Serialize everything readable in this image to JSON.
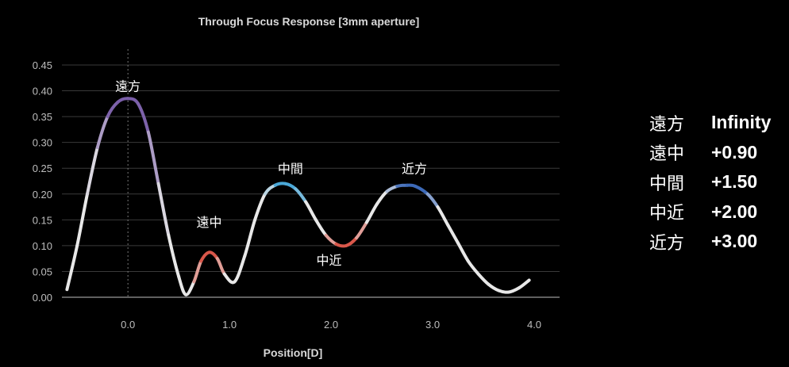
{
  "chart_data": {
    "type": "line",
    "title": "Through Focus Response [3mm aperture]",
    "xlabel": "Position[D]",
    "ylabel": "",
    "xlim": [
      -0.65,
      4.25
    ],
    "ylim": [
      0,
      0.45
    ],
    "x_ticks": [
      "0.0",
      "1.0",
      "2.0",
      "3.0",
      "4.0"
    ],
    "y_ticks": [
      "0.00",
      "0.05",
      "0.10",
      "0.15",
      "0.20",
      "0.25",
      "0.30",
      "0.35",
      "0.40",
      "0.45"
    ],
    "grid": "horizontal",
    "reference_line_x": 0.0,
    "series": [
      {
        "x": [
          -0.6,
          -0.5,
          -0.4,
          -0.3,
          -0.2,
          -0.1,
          0.0,
          0.1,
          0.2,
          0.3,
          0.4,
          0.5,
          0.57,
          0.65,
          0.72,
          0.8,
          0.88,
          0.95,
          1.05,
          1.15,
          1.25,
          1.35,
          1.45,
          1.55,
          1.65,
          1.75,
          1.85,
          1.95,
          2.05,
          2.15,
          2.25,
          2.35,
          2.45,
          2.55,
          2.65,
          2.75,
          2.83,
          2.95,
          3.05,
          3.15,
          3.25,
          3.35,
          3.45,
          3.55,
          3.65,
          3.75,
          3.85,
          3.95
        ],
        "values": [
          0.015,
          0.1,
          0.2,
          0.29,
          0.35,
          0.378,
          0.385,
          0.375,
          0.32,
          0.22,
          0.12,
          0.04,
          0.005,
          0.03,
          0.07,
          0.087,
          0.075,
          0.045,
          0.03,
          0.08,
          0.15,
          0.2,
          0.217,
          0.22,
          0.21,
          0.185,
          0.15,
          0.12,
          0.103,
          0.1,
          0.115,
          0.145,
          0.18,
          0.205,
          0.215,
          0.217,
          0.215,
          0.2,
          0.175,
          0.14,
          0.105,
          0.07,
          0.045,
          0.025,
          0.013,
          0.01,
          0.018,
          0.033
        ]
      }
    ],
    "annotations": [
      {
        "text": "遠方",
        "x": 0.0,
        "y": 0.4
      },
      {
        "text": "遠中",
        "x": 0.8,
        "y": 0.137
      },
      {
        "text": "中間",
        "x": 1.6,
        "y": 0.24
      },
      {
        "text": "中近",
        "x": 1.98,
        "y": 0.063
      },
      {
        "text": "近方",
        "x": 2.82,
        "y": 0.24
      }
    ],
    "colors": {
      "curve": "#e8e8e8",
      "peak_far": "#7a5ea8",
      "peak_intermediate_far": "#d9574a",
      "peak_intermediate": "#4aa8d8",
      "trough_near_intermediate": "#d9574a",
      "peak_near": "#3d6ab8",
      "grid": "#3a3a3a",
      "reference_line": "#777777"
    }
  },
  "legend": [
    {
      "name": "遠方",
      "value": "Infinity"
    },
    {
      "name": "遠中",
      "value": "+0.90"
    },
    {
      "name": "中間",
      "value": "+1.50"
    },
    {
      "name": "中近",
      "value": "+2.00"
    },
    {
      "name": "近方",
      "value": "+3.00"
    }
  ]
}
